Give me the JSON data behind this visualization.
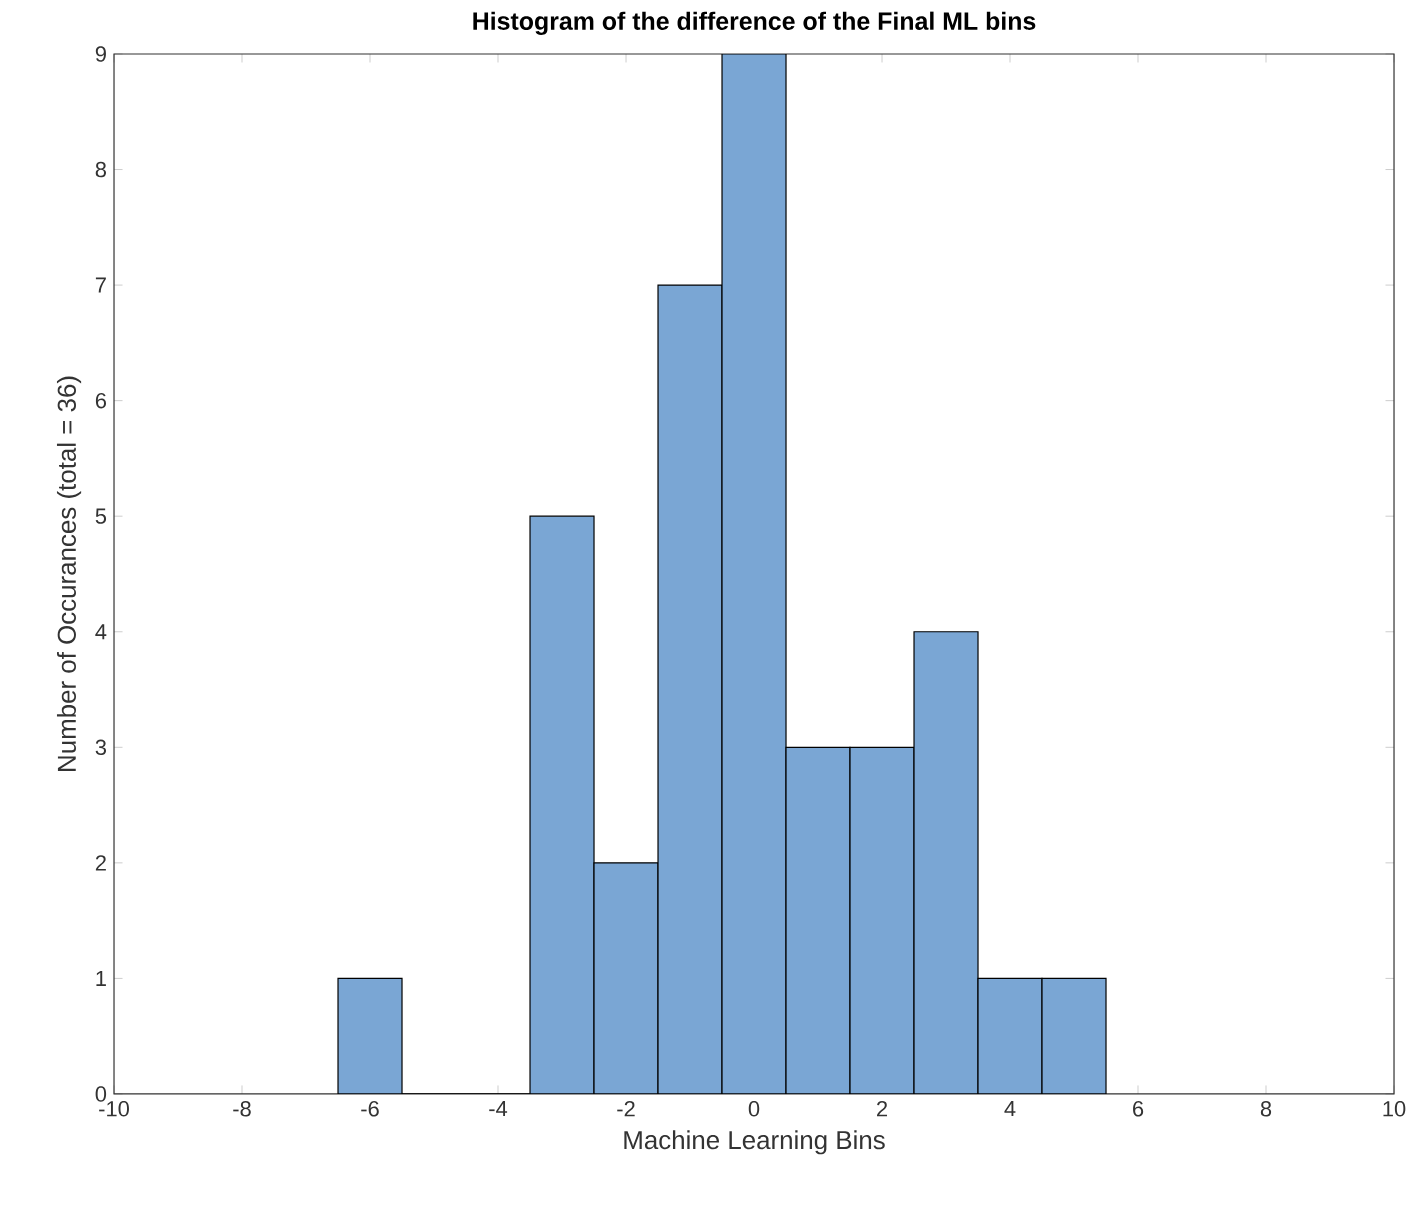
{
  "chart_data": {
    "type": "histogram",
    "title": "Histogram of the difference of the Final ML bins",
    "xlabel": "Machine Learning Bins",
    "ylabel": "Number of Occurances (total = 36)",
    "bins": [
      -6.5,
      -5.5,
      -4.5,
      -3.5,
      -2.5,
      -1.5,
      -0.5,
      0.5,
      1.5,
      2.5,
      3.5,
      4.5,
      5.5
    ],
    "values": [
      1,
      0,
      0,
      5,
      2,
      7,
      9,
      3,
      3,
      4,
      1,
      1
    ],
    "color": "#7aa6d4",
    "xlim": [
      -10,
      10
    ],
    "xticks": [
      -10,
      -8,
      -6,
      -4,
      -2,
      0,
      2,
      4,
      6,
      8,
      10
    ],
    "ylim": [
      0,
      9
    ],
    "yticks": [
      0,
      1,
      2,
      3,
      4,
      5,
      6,
      7,
      8,
      9
    ],
    "grid": false
  }
}
